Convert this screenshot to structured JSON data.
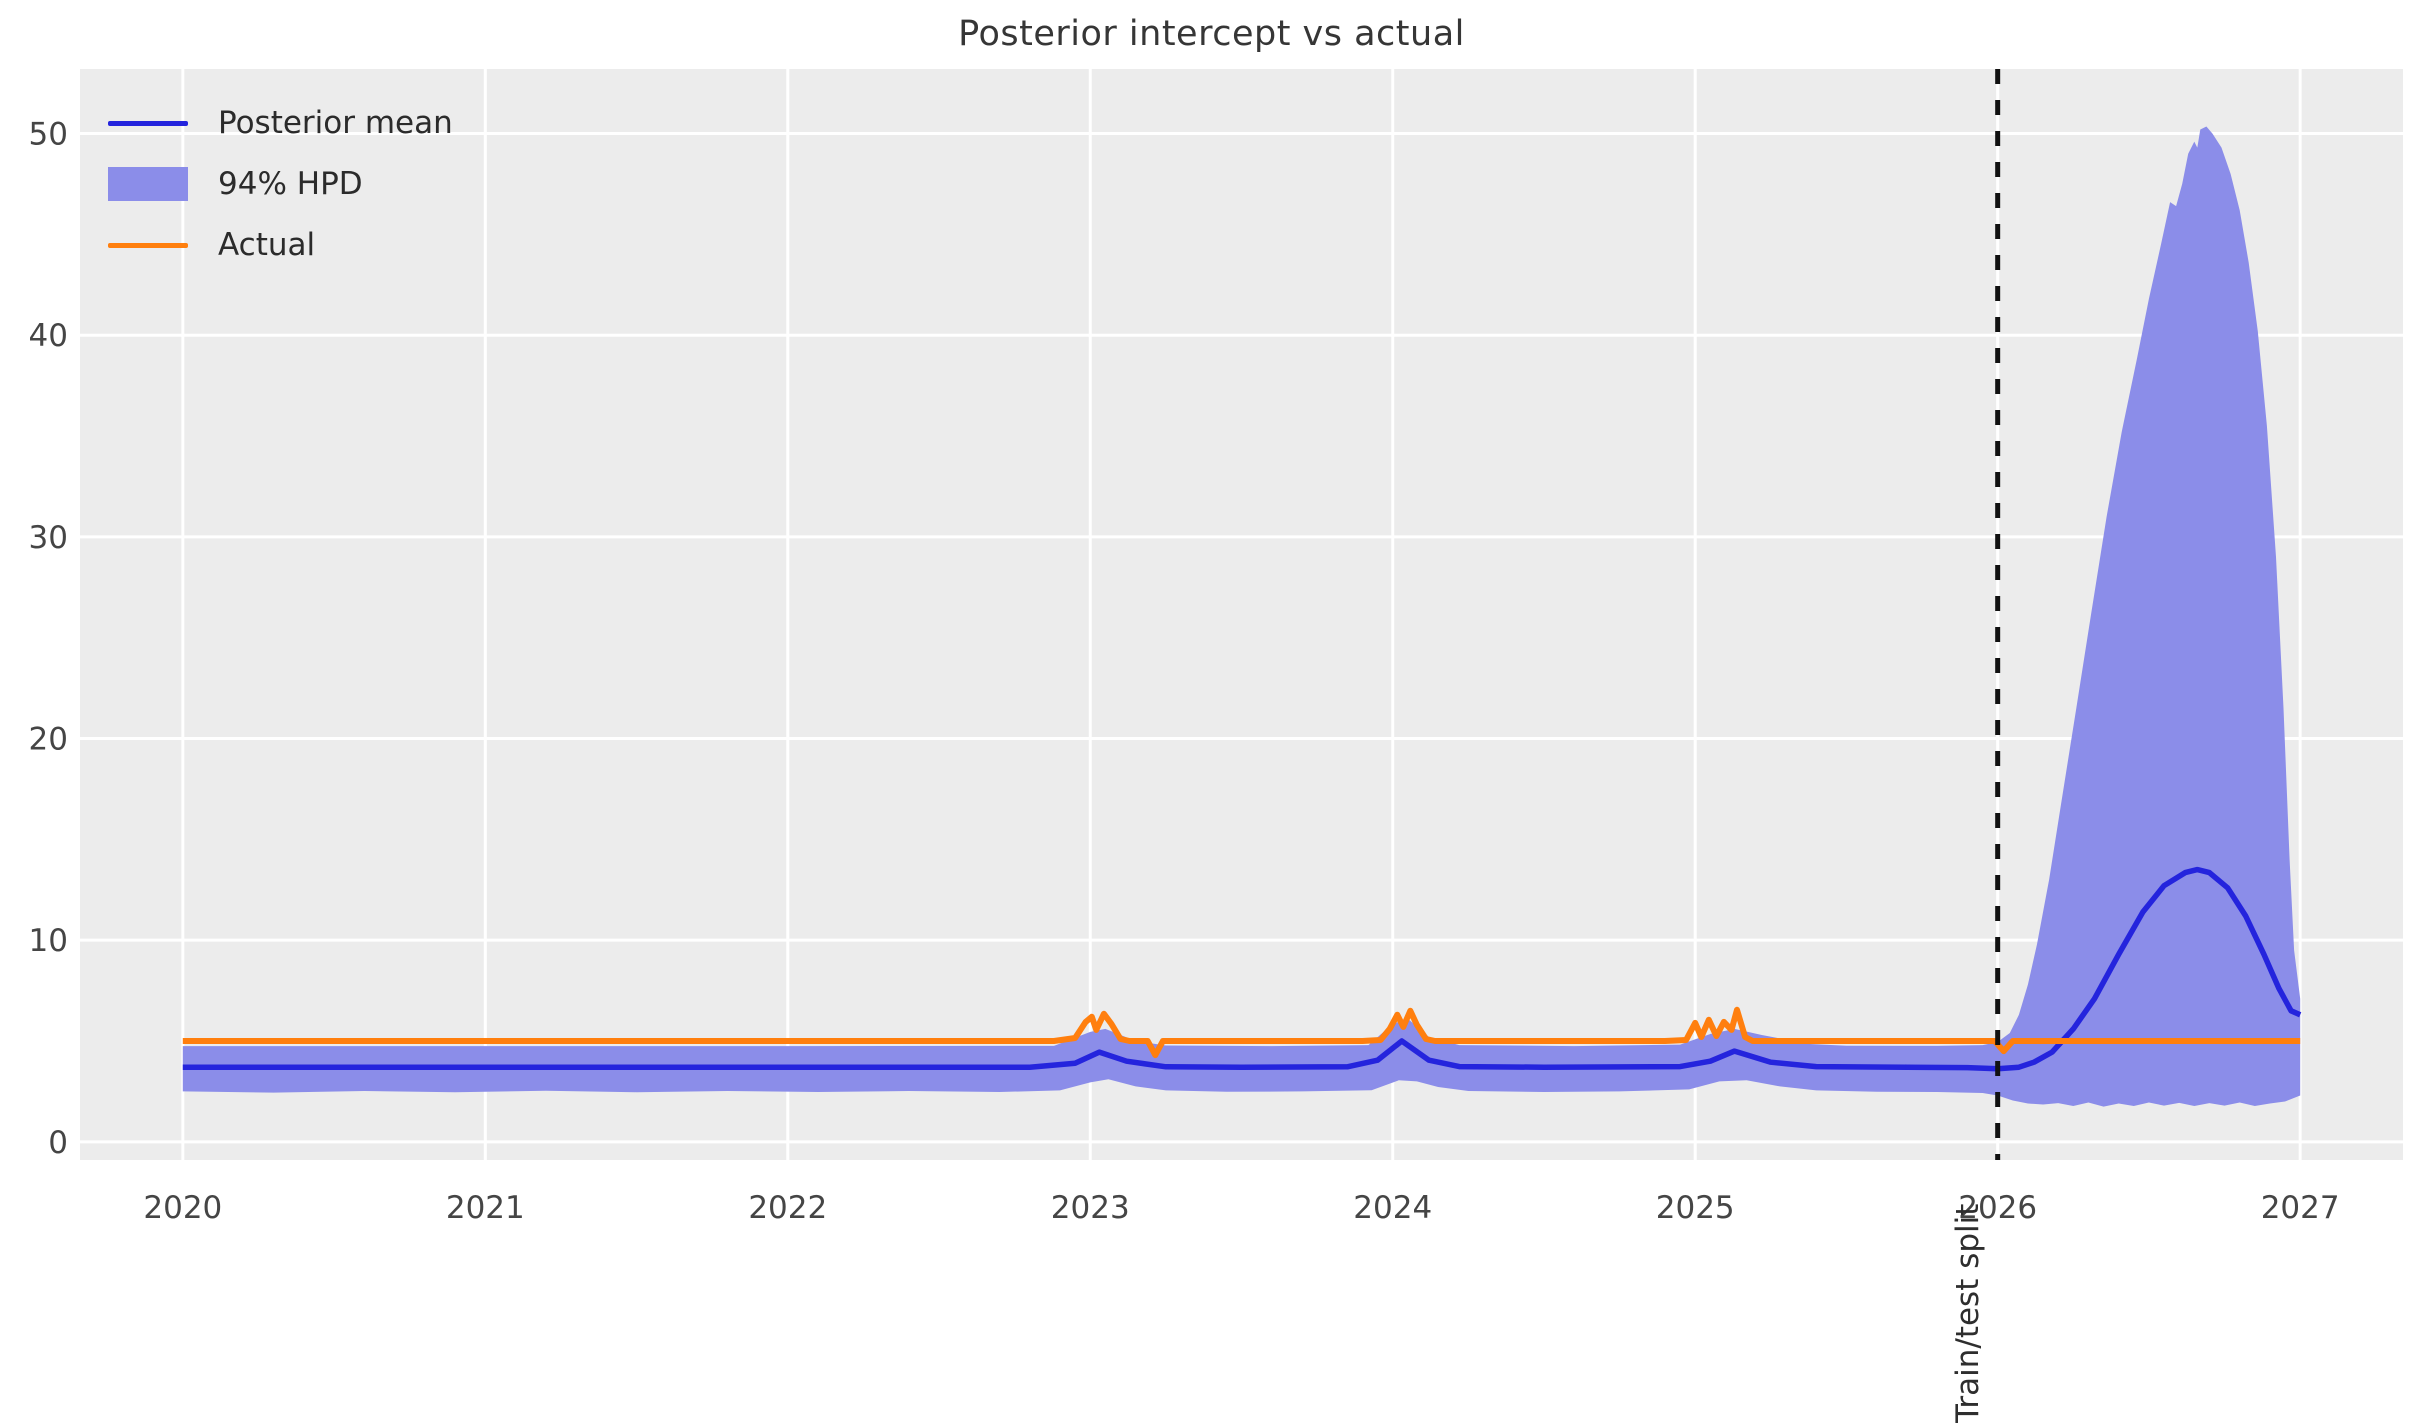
{
  "title": "Posterior intercept vs actual",
  "legend": {
    "items": [
      {
        "label": "Posterior mean",
        "type": "line",
        "color": "#2424dd"
      },
      {
        "label": "94% HPD",
        "type": "patch",
        "color": "#8b8de9"
      },
      {
        "label": "Actual",
        "type": "line",
        "color": "#ff7f0e"
      }
    ]
  },
  "annotations": {
    "split_label": "Train/test split"
  },
  "colors": {
    "axes_background": "#ececec",
    "grid": "#ffffff",
    "posterior_mean": "#2424dd",
    "hpd_band": "#8b8de9",
    "actual": "#ff7f0e",
    "split_line": "#111111",
    "tick_text": "#454545",
    "title_text": "#363636"
  },
  "chart_data": {
    "type": "line",
    "title": "Posterior intercept vs actual",
    "xlabel": "",
    "ylabel": "",
    "grid": true,
    "legend_position": "upper left",
    "xlim": [
      2019.66,
      2027.34
    ],
    "ylim": [
      -0.9,
      53.2
    ],
    "x_ticks": [
      2020,
      2021,
      2022,
      2023,
      2024,
      2025,
      2026,
      2027
    ],
    "y_ticks": [
      0,
      10,
      20,
      30,
      40,
      50
    ],
    "split_x": 2026.0,
    "series": [
      {
        "name": "Posterior mean",
        "color": "#2424dd",
        "points": [
          [
            2020.0,
            3.7
          ],
          [
            2020.5,
            3.7
          ],
          [
            2021.0,
            3.7
          ],
          [
            2021.5,
            3.7
          ],
          [
            2022.0,
            3.7
          ],
          [
            2022.5,
            3.7
          ],
          [
            2022.8,
            3.7
          ],
          [
            2022.95,
            3.9
          ],
          [
            2023.03,
            4.45
          ],
          [
            2023.12,
            4.0
          ],
          [
            2023.25,
            3.72
          ],
          [
            2023.5,
            3.7
          ],
          [
            2023.85,
            3.72
          ],
          [
            2023.95,
            4.05
          ],
          [
            2024.03,
            5.0
          ],
          [
            2024.12,
            4.05
          ],
          [
            2024.22,
            3.73
          ],
          [
            2024.5,
            3.7
          ],
          [
            2024.95,
            3.73
          ],
          [
            2025.05,
            4.0
          ],
          [
            2025.13,
            4.5
          ],
          [
            2025.25,
            3.95
          ],
          [
            2025.4,
            3.73
          ],
          [
            2025.7,
            3.7
          ],
          [
            2025.9,
            3.68
          ],
          [
            2026.0,
            3.62
          ],
          [
            2026.07,
            3.7
          ],
          [
            2026.12,
            3.95
          ],
          [
            2026.18,
            4.45
          ],
          [
            2026.25,
            5.6
          ],
          [
            2026.32,
            7.1
          ],
          [
            2026.4,
            9.3
          ],
          [
            2026.48,
            11.4
          ],
          [
            2026.55,
            12.7
          ],
          [
            2026.62,
            13.35
          ],
          [
            2026.66,
            13.5
          ],
          [
            2026.7,
            13.35
          ],
          [
            2026.76,
            12.6
          ],
          [
            2026.82,
            11.2
          ],
          [
            2026.88,
            9.3
          ],
          [
            2026.93,
            7.6
          ],
          [
            2026.97,
            6.5
          ],
          [
            2027.0,
            6.3
          ]
        ]
      },
      {
        "name": "Actual",
        "color": "#ff7f0e",
        "points": [
          [
            2020.0,
            5
          ],
          [
            2021.0,
            5
          ],
          [
            2022.0,
            5
          ],
          [
            2022.88,
            5
          ],
          [
            2022.95,
            5.15
          ],
          [
            2022.985,
            5.95
          ],
          [
            2023.005,
            6.2
          ],
          [
            2023.02,
            5.55
          ],
          [
            2023.045,
            6.35
          ],
          [
            2023.07,
            5.85
          ],
          [
            2023.1,
            5.1
          ],
          [
            2023.13,
            5
          ],
          [
            2023.19,
            5
          ],
          [
            2023.215,
            4.3
          ],
          [
            2023.24,
            5
          ],
          [
            2023.9,
            5
          ],
          [
            2023.96,
            5.05
          ],
          [
            2023.99,
            5.6
          ],
          [
            2024.015,
            6.3
          ],
          [
            2024.035,
            5.7
          ],
          [
            2024.058,
            6.5
          ],
          [
            2024.08,
            5.8
          ],
          [
            2024.11,
            5.1
          ],
          [
            2024.14,
            5
          ],
          [
            2024.9,
            5
          ],
          [
            2024.97,
            5.05
          ],
          [
            2025.0,
            5.9
          ],
          [
            2025.02,
            5.2
          ],
          [
            2025.045,
            6.05
          ],
          [
            2025.07,
            5.25
          ],
          [
            2025.095,
            5.95
          ],
          [
            2025.12,
            5.55
          ],
          [
            2025.138,
            6.55
          ],
          [
            2025.165,
            5.2
          ],
          [
            2025.19,
            5
          ],
          [
            2025.9,
            5
          ],
          [
            2025.99,
            5
          ],
          [
            2026.02,
            4.5
          ],
          [
            2026.05,
            5
          ],
          [
            2026.5,
            5
          ],
          [
            2027.0,
            5
          ]
        ]
      }
    ],
    "band": {
      "name": "94% HPD",
      "color": "#8b8de9",
      "upper": [
        [
          2020.0,
          4.75
        ],
        [
          2021.0,
          4.75
        ],
        [
          2022.0,
          4.75
        ],
        [
          2022.88,
          4.76
        ],
        [
          2023.0,
          5.45
        ],
        [
          2023.05,
          5.6
        ],
        [
          2023.15,
          5.0
        ],
        [
          2023.25,
          4.78
        ],
        [
          2023.6,
          4.75
        ],
        [
          2023.92,
          4.8
        ],
        [
          2024.0,
          5.85
        ],
        [
          2024.05,
          6.1
        ],
        [
          2024.12,
          5.2
        ],
        [
          2024.22,
          4.8
        ],
        [
          2024.6,
          4.75
        ],
        [
          2024.95,
          4.82
        ],
        [
          2025.05,
          5.35
        ],
        [
          2025.13,
          5.6
        ],
        [
          2025.22,
          5.3
        ],
        [
          2025.38,
          4.85
        ],
        [
          2025.5,
          4.77
        ],
        [
          2025.8,
          4.76
        ],
        [
          2025.95,
          4.8
        ],
        [
          2026.0,
          4.95
        ],
        [
          2026.04,
          5.4
        ],
        [
          2026.07,
          6.3
        ],
        [
          2026.1,
          7.8
        ],
        [
          2026.13,
          9.8
        ],
        [
          2026.17,
          13.0
        ],
        [
          2026.21,
          16.8
        ],
        [
          2026.26,
          21.5
        ],
        [
          2026.31,
          26.3
        ],
        [
          2026.36,
          31.0
        ],
        [
          2026.41,
          35.2
        ],
        [
          2026.46,
          38.8
        ],
        [
          2026.5,
          41.8
        ],
        [
          2026.54,
          44.5
        ],
        [
          2026.57,
          46.6
        ],
        [
          2026.59,
          46.4
        ],
        [
          2026.61,
          47.5
        ],
        [
          2026.63,
          49.0
        ],
        [
          2026.65,
          49.6
        ],
        [
          2026.66,
          49.3
        ],
        [
          2026.67,
          50.2
        ],
        [
          2026.69,
          50.35
        ],
        [
          2026.71,
          50.0
        ],
        [
          2026.74,
          49.3
        ],
        [
          2026.77,
          48.0
        ],
        [
          2026.8,
          46.2
        ],
        [
          2026.83,
          43.6
        ],
        [
          2026.86,
          40.2
        ],
        [
          2026.89,
          35.5
        ],
        [
          2026.92,
          29.0
        ],
        [
          2026.945,
          21.5
        ],
        [
          2026.965,
          14.0
        ],
        [
          2026.98,
          9.5
        ],
        [
          2027.0,
          7.1
        ]
      ],
      "lower": [
        [
          2020.0,
          2.5
        ],
        [
          2020.3,
          2.44
        ],
        [
          2020.6,
          2.52
        ],
        [
          2020.9,
          2.46
        ],
        [
          2021.2,
          2.53
        ],
        [
          2021.5,
          2.46
        ],
        [
          2021.8,
          2.52
        ],
        [
          2022.1,
          2.47
        ],
        [
          2022.4,
          2.52
        ],
        [
          2022.7,
          2.47
        ],
        [
          2022.9,
          2.55
        ],
        [
          2023.0,
          2.95
        ],
        [
          2023.06,
          3.1
        ],
        [
          2023.15,
          2.75
        ],
        [
          2023.25,
          2.55
        ],
        [
          2023.45,
          2.48
        ],
        [
          2023.7,
          2.5
        ],
        [
          2023.93,
          2.56
        ],
        [
          2024.02,
          3.05
        ],
        [
          2024.08,
          3.0
        ],
        [
          2024.15,
          2.72
        ],
        [
          2024.25,
          2.52
        ],
        [
          2024.5,
          2.47
        ],
        [
          2024.75,
          2.5
        ],
        [
          2024.98,
          2.6
        ],
        [
          2025.08,
          3.0
        ],
        [
          2025.17,
          3.05
        ],
        [
          2025.28,
          2.75
        ],
        [
          2025.4,
          2.55
        ],
        [
          2025.6,
          2.48
        ],
        [
          2025.8,
          2.47
        ],
        [
          2025.95,
          2.42
        ],
        [
          2026.0,
          2.3
        ],
        [
          2026.05,
          2.05
        ],
        [
          2026.1,
          1.9
        ],
        [
          2026.15,
          1.85
        ],
        [
          2026.2,
          1.92
        ],
        [
          2026.25,
          1.78
        ],
        [
          2026.3,
          1.95
        ],
        [
          2026.35,
          1.75
        ],
        [
          2026.4,
          1.9
        ],
        [
          2026.45,
          1.78
        ],
        [
          2026.5,
          1.95
        ],
        [
          2026.55,
          1.8
        ],
        [
          2026.6,
          1.93
        ],
        [
          2026.65,
          1.78
        ],
        [
          2026.7,
          1.92
        ],
        [
          2026.75,
          1.8
        ],
        [
          2026.8,
          1.95
        ],
        [
          2026.85,
          1.78
        ],
        [
          2026.9,
          1.9
        ],
        [
          2026.95,
          2.0
        ],
        [
          2027.0,
          2.3
        ]
      ]
    }
  }
}
